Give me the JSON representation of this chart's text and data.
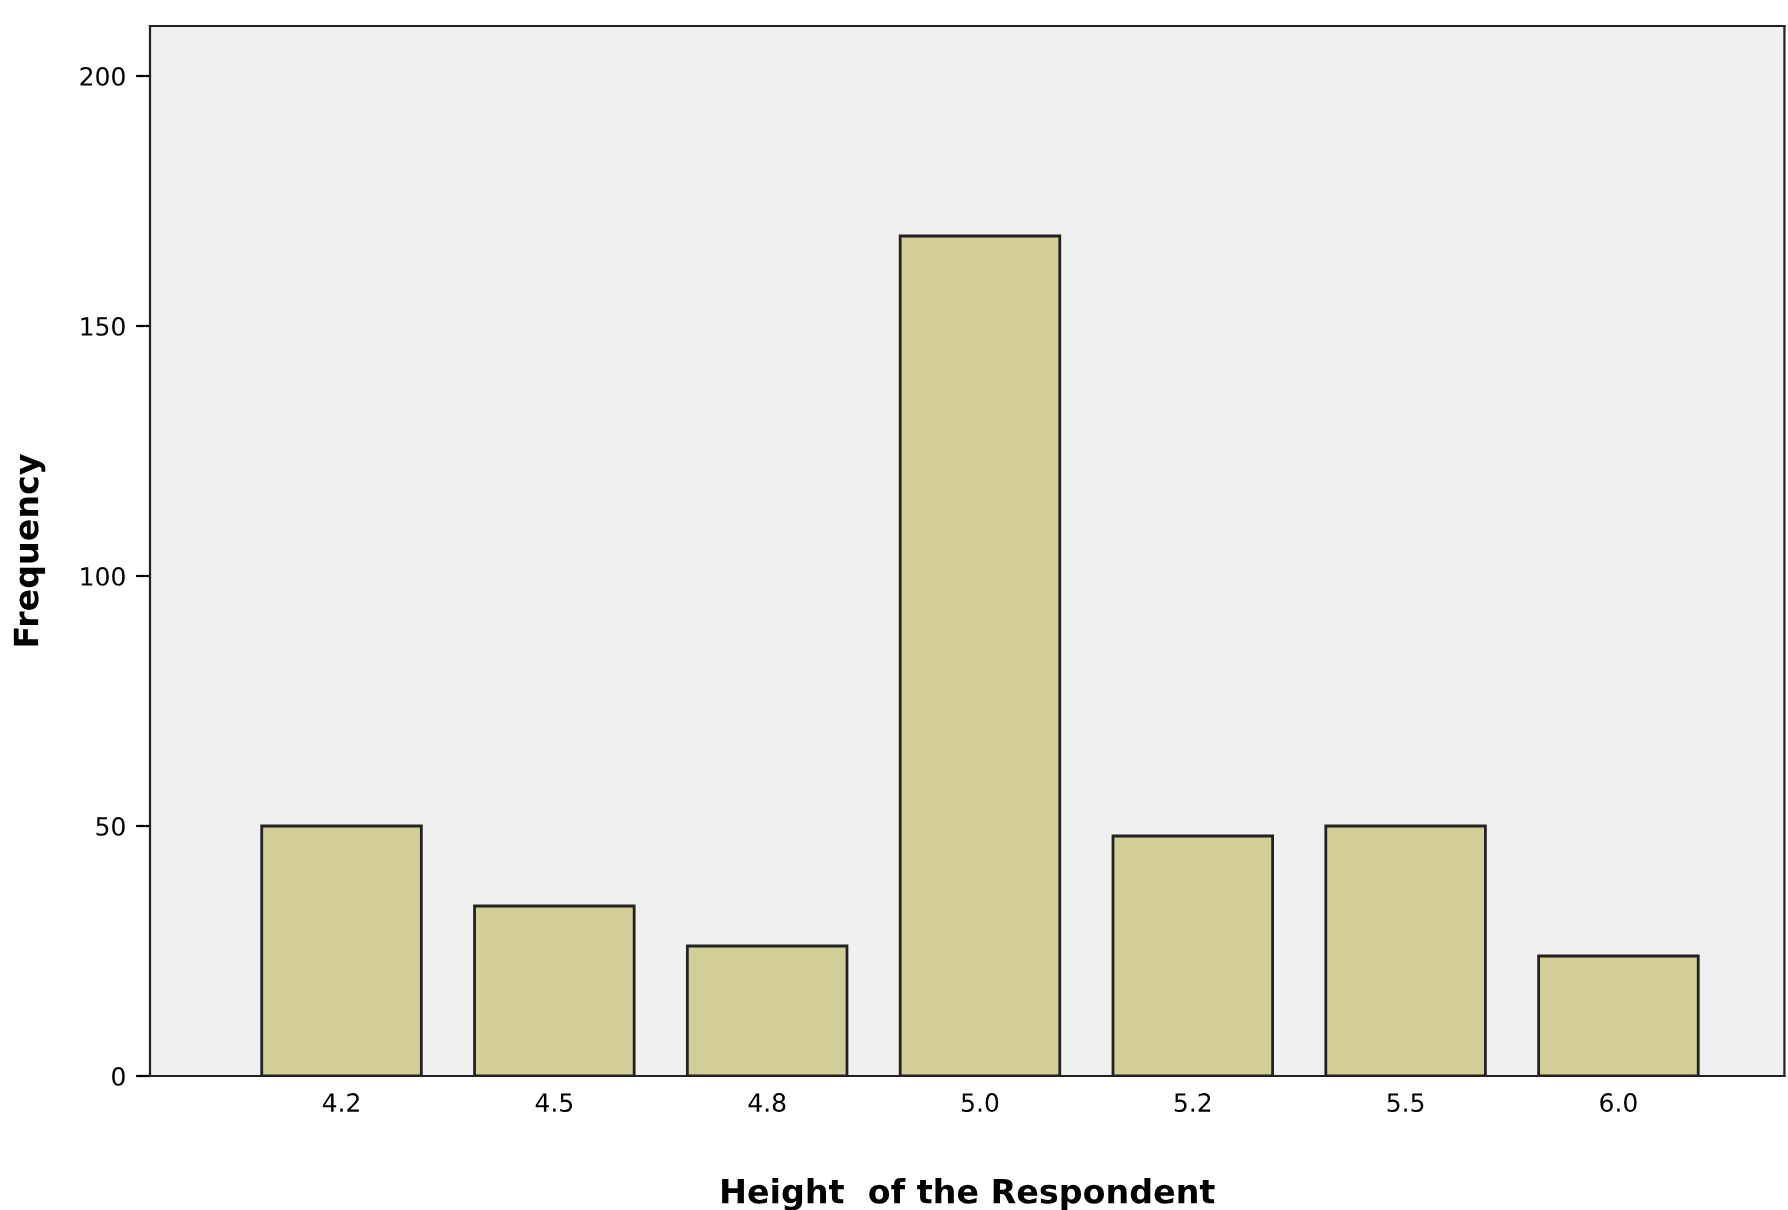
{
  "chart_data": {
    "type": "bar",
    "xlabel": "Height  of the Respondent",
    "ylabel": "Frequency",
    "categories": [
      "4.2",
      "4.5",
      "4.8",
      "5.0",
      "5.2",
      "5.5",
      "6.0"
    ],
    "values": [
      50,
      34,
      26,
      168,
      48,
      50,
      24
    ],
    "color": "#d3ce97",
    "ylim": [
      0,
      210
    ],
    "yticks": [
      0,
      50,
      100,
      150,
      200
    ],
    "grid": false,
    "legend": false
  }
}
